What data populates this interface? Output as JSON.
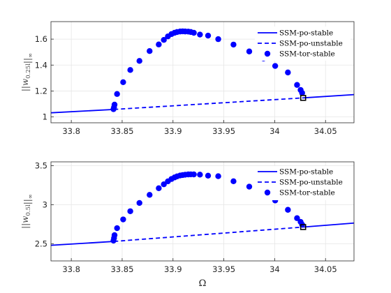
{
  "chart_data": [
    {
      "type": "line",
      "ylabel": "||w_{0.25l}||_∞",
      "xlabel": "",
      "xlim": [
        33.78,
        34.078
      ],
      "ylim": [
        0.955,
        1.735
      ],
      "xticks": [
        33.8,
        33.85,
        33.9,
        33.95,
        34.0,
        34.05
      ],
      "xtick_labels": [
        "33.8",
        "33.85",
        "33.9",
        "33.95",
        "34",
        "34.05"
      ],
      "yticks": [
        1.0,
        1.2,
        1.4,
        1.6
      ],
      "ytick_labels": [
        "1",
        "1.2",
        "1.4",
        "1.6"
      ],
      "grid": true,
      "legend_position": "top-right",
      "series": [
        {
          "name": "SSM-po-stable",
          "style": "solid",
          "color": "#0000ff",
          "segments": [
            {
              "x": [
                33.78,
                33.842
              ],
              "y": [
                1.032,
                1.058
              ]
            },
            {
              "x": [
                34.028,
                34.078
              ],
              "y": [
                1.147,
                1.172
              ]
            }
          ]
        },
        {
          "name": "SSM-po-unstable",
          "style": "dashed",
          "color": "#0000ff",
          "segments": [
            {
              "x": [
                33.842,
                34.028
              ],
              "y": [
                1.058,
                1.147
              ]
            }
          ]
        },
        {
          "name": "SSM-tor-stable",
          "style": "marker",
          "color": "#0000ff",
          "x": [
            33.8415,
            33.842,
            33.8425,
            33.845,
            33.851,
            33.858,
            33.867,
            33.877,
            33.886,
            33.891,
            33.895,
            33.8985,
            33.9015,
            33.904,
            33.907,
            33.9095,
            33.912,
            33.915,
            33.9175,
            33.9205,
            33.9265,
            33.9345,
            33.9445,
            33.9595,
            33.975,
            33.989,
            33.9945,
            34.0005,
            34.013,
            34.022,
            34.0255,
            34.027
          ],
          "y": [
            1.06,
            1.075,
            1.095,
            1.177,
            1.268,
            1.362,
            1.432,
            1.508,
            1.559,
            1.594,
            1.621,
            1.639,
            1.649,
            1.655,
            1.659,
            1.66,
            1.659,
            1.658,
            1.655,
            1.649,
            1.635,
            1.627,
            1.6,
            1.558,
            1.505,
            1.451,
            1.472,
            1.393,
            1.343,
            1.247,
            1.208,
            1.185
          ]
        }
      ],
      "highlight_point": {
        "x": 34.028,
        "y": 1.147,
        "marker": "square"
      }
    },
    {
      "type": "line",
      "ylabel": "||w_{0.5l}||_∞",
      "xlabel": "Ω",
      "xlim": [
        33.78,
        34.078
      ],
      "ylim": [
        2.28,
        3.55
      ],
      "xticks": [
        33.8,
        33.85,
        33.9,
        33.95,
        34.0,
        34.05
      ],
      "xtick_labels": [
        "33.8",
        "33.85",
        "33.9",
        "33.95",
        "34",
        "34.05"
      ],
      "yticks": [
        2.5,
        3.0,
        3.5
      ],
      "ytick_labels": [
        "2.5",
        "3",
        "3.5"
      ],
      "grid": true,
      "legend_position": "top-right",
      "series": [
        {
          "name": "SSM-po-stable",
          "style": "solid",
          "color": "#0000ff",
          "segments": [
            {
              "x": [
                33.78,
                33.842
              ],
              "y": [
                2.48,
                2.53
              ]
            },
            {
              "x": [
                34.028,
                34.078
              ],
              "y": [
                2.714,
                2.765
              ]
            }
          ]
        },
        {
          "name": "SSM-po-unstable",
          "style": "dashed",
          "color": "#0000ff",
          "segments": [
            {
              "x": [
                33.842,
                34.028
              ],
              "y": [
                2.53,
                2.714
              ]
            }
          ]
        },
        {
          "name": "SSM-tor-stable",
          "style": "marker",
          "color": "#0000ff",
          "x": [
            33.8415,
            33.842,
            33.8425,
            33.845,
            33.851,
            33.858,
            33.867,
            33.877,
            33.886,
            33.891,
            33.895,
            33.8985,
            33.9015,
            33.904,
            33.907,
            33.9095,
            33.912,
            33.915,
            33.9175,
            33.9205,
            33.9265,
            33.9345,
            33.9445,
            33.9595,
            33.975,
            33.989,
            33.9945,
            34.0005,
            34.013,
            34.022,
            34.0255,
            34.027
          ],
          "y": [
            2.54,
            2.573,
            2.61,
            2.7,
            2.812,
            2.917,
            3.023,
            3.127,
            3.212,
            3.262,
            3.3,
            3.33,
            3.35,
            3.364,
            3.375,
            3.381,
            3.385,
            3.389,
            3.39,
            3.389,
            3.386,
            3.373,
            3.366,
            3.301,
            3.232,
            3.162,
            3.142,
            3.055,
            2.935,
            2.828,
            2.78,
            2.745
          ]
        }
      ],
      "highlight_point": {
        "x": 34.028,
        "y": 2.714,
        "marker": "square"
      }
    }
  ]
}
